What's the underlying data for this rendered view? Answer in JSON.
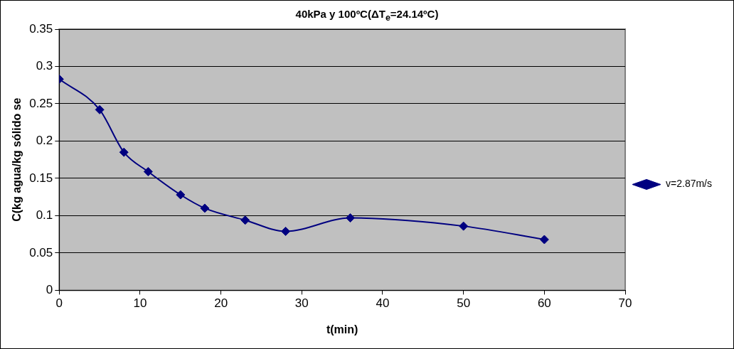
{
  "chart_data": {
    "type": "line",
    "title": "40kPa y 100ºC(ΔT$_{e}$=24.14ºC)",
    "xlabel": "t(min)",
    "ylabel": "C(kg agua/kg sólido se",
    "x": [
      0,
      5,
      8,
      11,
      15,
      18,
      23,
      28,
      36,
      50,
      60
    ],
    "series": [
      {
        "name": "v=2.87m/s",
        "color": "#000080",
        "values": [
          0.283,
          0.242,
          0.185,
          0.159,
          0.128,
          0.11,
          0.094,
          0.079,
          0.097,
          0.086,
          0.068
        ]
      }
    ],
    "xlim": [
      0,
      70
    ],
    "xticks": [
      0,
      10,
      20,
      30,
      40,
      50,
      60,
      70
    ],
    "ylim": [
      0,
      0.35
    ],
    "yticks": [
      0,
      0.05,
      0.1,
      0.15,
      0.2,
      0.25,
      0.3,
      0.35
    ],
    "grid": "y",
    "legend": "right",
    "marker": "diamond",
    "line_style": "solid"
  }
}
